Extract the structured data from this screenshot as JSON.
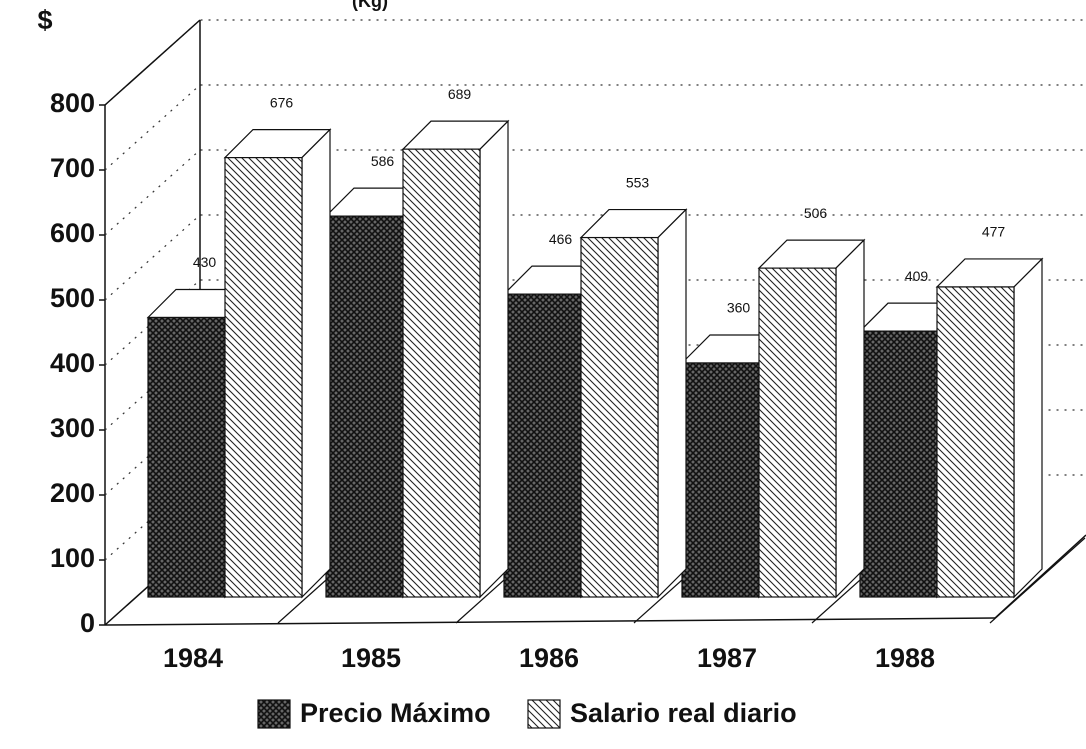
{
  "chart_data": {
    "type": "bar3d",
    "title": "(Kg)",
    "y_label": "$",
    "categories": [
      "1984",
      "1985",
      "1986",
      "1987",
      "1988"
    ],
    "series": [
      {
        "name": "Precio Máximo",
        "color": "#222222",
        "values": [
          430,
          586,
          466,
          360,
          409
        ]
      },
      {
        "name": "Salario real diario",
        "color": "#ffffff",
        "values": [
          676,
          689,
          553,
          506,
          477
        ]
      }
    ],
    "ylim": [
      0,
      800
    ],
    "yticks": [
      0,
      100,
      200,
      300,
      400,
      500,
      600,
      700,
      800
    ],
    "grid": true
  }
}
